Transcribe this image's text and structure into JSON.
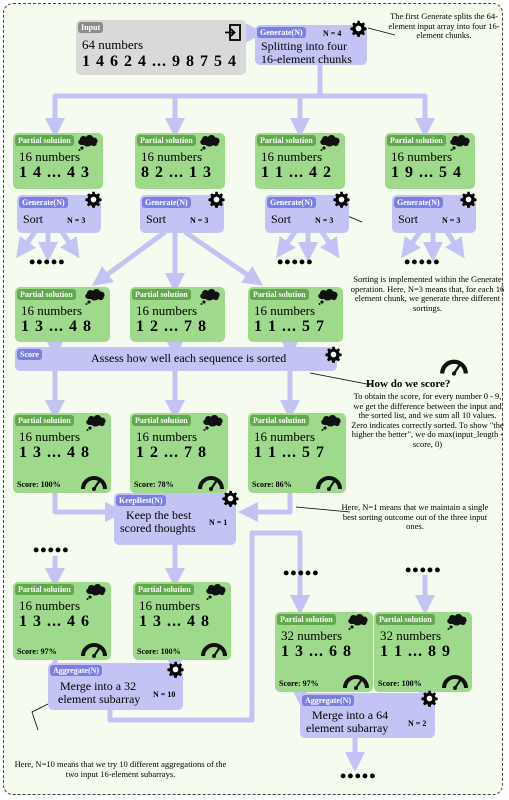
{
  "input": {
    "tag": "Input",
    "line1": "64 numbers",
    "line2": "1 4 6 2 4  ...  9 8 7 5 4"
  },
  "generate_split": {
    "tag": "Generate(N)",
    "n": "N = 4",
    "text_line1": "Splitting into four",
    "text_line2": "16-element chunks"
  },
  "partials_row1": [
    {
      "tag": "Partial solution",
      "line1": "16 numbers",
      "line2": "1 4  ...  4 3",
      "op_tag": "Generate(N)",
      "op_text": "Sort",
      "op_n": "N = 3"
    },
    {
      "tag": "Partial solution",
      "line1": "16 numbers",
      "line2": "8 2  ...  1 3",
      "op_tag": "Generate(N)",
      "op_text": "Sort",
      "op_n": "N = 3"
    },
    {
      "tag": "Partial solution",
      "line1": "16 numbers",
      "line2": "1 1  ...  4 2",
      "op_tag": "Generate(N)",
      "op_text": "Sort",
      "op_n": "N = 3"
    },
    {
      "tag": "Partial solution",
      "line1": "16 numbers",
      "line2": "1 9  ...  5 4",
      "op_tag": "Generate(N)",
      "op_text": "Sort",
      "op_n": "N = 3"
    }
  ],
  "partials_row2": [
    {
      "tag": "Partial solution",
      "line1": "16 numbers",
      "line2": "1 3  ...  4 8"
    },
    {
      "tag": "Partial solution",
      "line1": "16 numbers",
      "line2": "1 2  ...  7 8"
    },
    {
      "tag": "Partial solution",
      "line1": "16 numbers",
      "line2": "1 1  ...  5 7"
    }
  ],
  "score_op": {
    "tag": "Score",
    "text": "Assess how well each sequence is sorted"
  },
  "partials_row3": [
    {
      "tag": "Partial solution",
      "line1": "16 numbers",
      "line2": "1 3  ...  4 8",
      "score": "Score: 100%"
    },
    {
      "tag": "Partial solution",
      "line1": "16 numbers",
      "line2": "1 2  ...  7 8",
      "score": "Score: 78%"
    },
    {
      "tag": "Partial solution",
      "line1": "16 numbers",
      "line2": "1 1  ...  5 7",
      "score": "Score: 86%"
    }
  ],
  "keepbest": {
    "tag": "KeepBest(N)",
    "text_line1": "Keep the best",
    "text_line2": "scored thoughts",
    "n": "N = 1"
  },
  "partials_row4": [
    {
      "tag": "Partial solution",
      "line1": "16 numbers",
      "line2": "1 3  ...  4 6",
      "score": "Score: 97%"
    },
    {
      "tag": "Partial solution",
      "line1": "16 numbers",
      "line2": "1 3  ...  4 8",
      "score": "Score: 100%"
    }
  ],
  "aggregate_left": {
    "tag": "Aggregate(N)",
    "text_line1": "Merge into a 32",
    "text_line2": "element subarray",
    "n": "N = 10"
  },
  "partials_row5": [
    {
      "tag": "Partial solution",
      "line1": "32 numbers",
      "line2": "1 3  ...  6 8",
      "score": "Score: 97%"
    },
    {
      "tag": "Partial solution",
      "line1": "32 numbers",
      "line2": "1 1  ...  8 9",
      "score": "Score: 100%"
    }
  ],
  "aggregate_right": {
    "tag": "Aggregate(N)",
    "text_line1": "Merge into a 64",
    "text_line2": "element subarray",
    "n": "N = 2"
  },
  "dots": "•••••",
  "notes": {
    "first_generate": "The first Generate splits the 64-element input array into four 16-element chunks.",
    "sorting": "Sorting is implemented within the Generate operation. Here, N=3 means that, for each 16 element chunk, we generate three different sortings.",
    "score_heading": "How do we score?",
    "score_body": "To obtain the score, for every number 0 - 9, we get the difference between the input and the sorted list, and we sum all 10 values. Zero indicates correctly sorted. To show \"the higher the better\", we do max(input_length - score, 0)",
    "keepbest": "Here, N=1 means that we maintain a single best sorting outcome out of the three input ones.",
    "aggregate": "Here, N=10 means that we try 10 different aggregations of the two input 16-element subarrays."
  },
  "icons": {
    "gear": "gear-icon",
    "thought": "thought-cloud-icon",
    "gauge": "gauge-icon",
    "input": "input-arrow-icon"
  },
  "colors": {
    "green": "#9fd98c",
    "purple": "#c3c4f3",
    "arrow": "#c3c4f3"
  }
}
